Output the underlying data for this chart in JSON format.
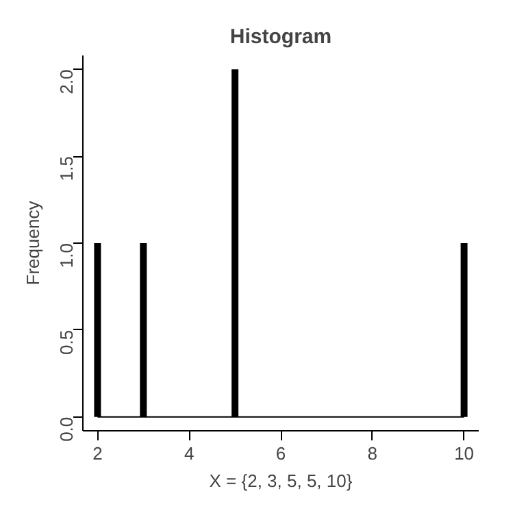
{
  "chart_data": {
    "type": "bar",
    "title": "Histogram",
    "xlabel": "X = {2, 3, 5, 5, 10}",
    "ylabel": "Frequency",
    "x": [
      2,
      3,
      5,
      10
    ],
    "values": [
      1,
      1,
      2,
      1
    ],
    "color": "#000000",
    "xlim": [
      1.68,
      10.32
    ],
    "ylim": [
      -0.08,
      2.08
    ],
    "xticks": [
      2,
      4,
      6,
      8,
      10
    ],
    "yticks": [
      {
        "value": 0,
        "label": "0.0"
      },
      {
        "value": 0.5,
        "label": "0.5"
      },
      {
        "value": 1,
        "label": "1.0"
      },
      {
        "value": 1.5,
        "label": "1.5"
      },
      {
        "value": 2,
        "label": "2.0"
      }
    ],
    "grid": false,
    "ref_lines": [
      {
        "axis": "y",
        "value": 0,
        "color": "#000000"
      }
    ]
  }
}
